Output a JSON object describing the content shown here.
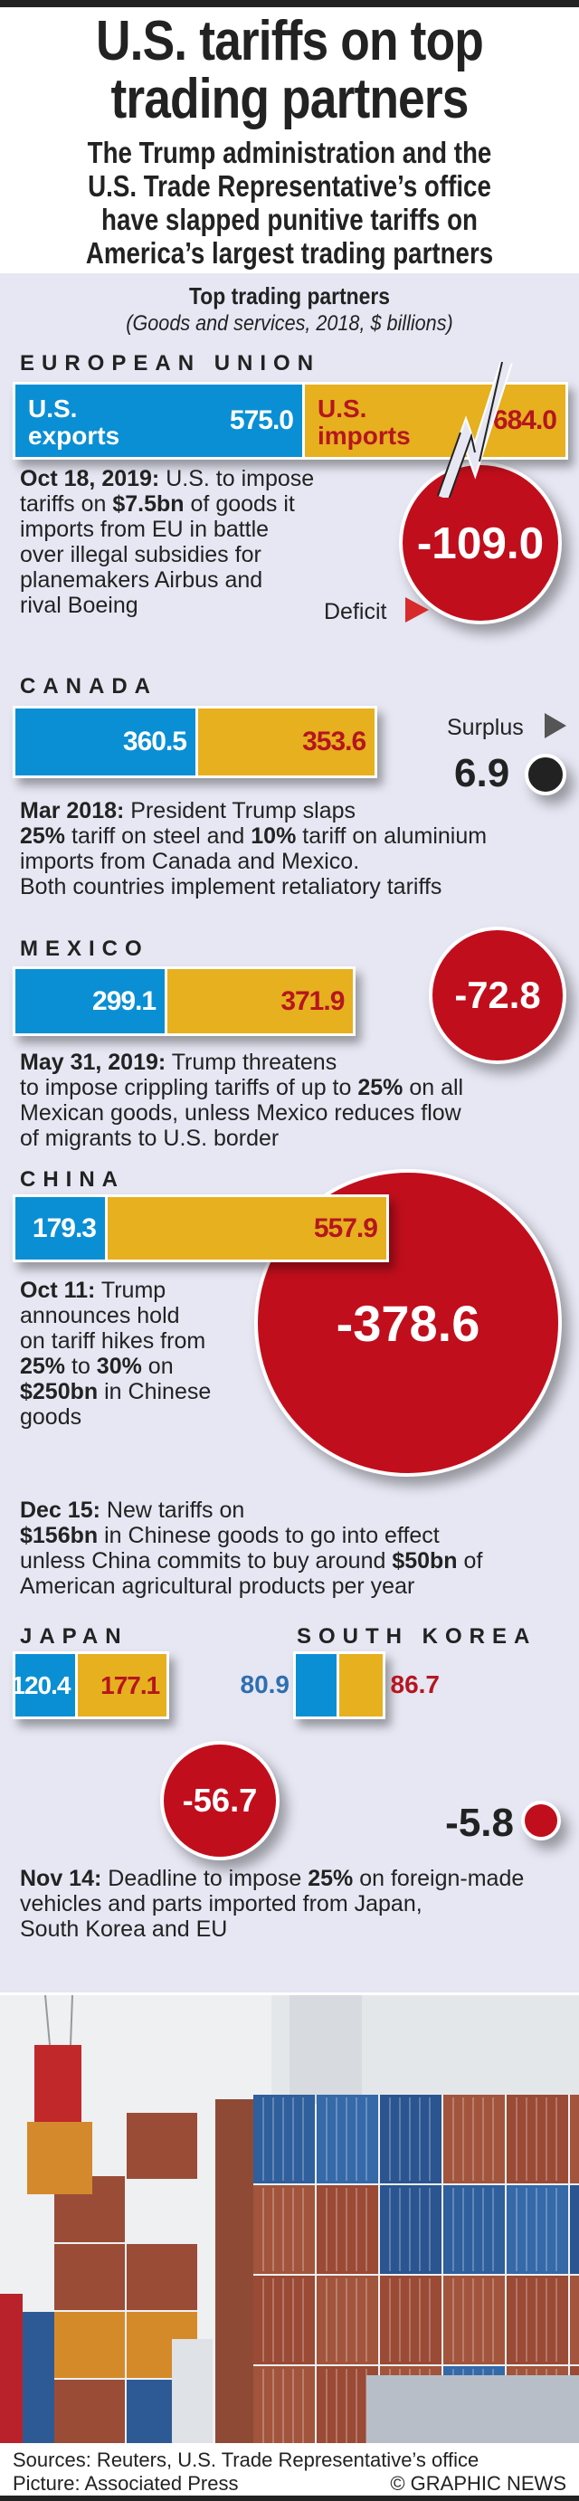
{
  "header": {
    "title_line1": "U.S. tariffs on top",
    "title_line2": "trading partners",
    "subtitle_lines": [
      "The Trump administration and the",
      "U.S. Trade Representative’s office",
      "have slapped punitive tariffs on",
      "America’s largest trading partners"
    ]
  },
  "chart_data": {
    "type": "bar",
    "title": "Top trading partners",
    "subtitle": "(Goods and services, 2018, $ billions)",
    "series_labels": {
      "exports": "U.S. exports",
      "imports": "U.S. imports"
    },
    "export_label_lines": [
      "U.S.",
      "exports"
    ],
    "import_label_lines": [
      "U.S.",
      "imports"
    ],
    "deficit_label": "Deficit",
    "surplus_label": "Surplus",
    "partners": [
      {
        "name": "EUROPEAN UNION",
        "exports": 575.0,
        "imports": 684.0,
        "balance": -109.0,
        "exports_text": "575.0",
        "imports_text": "684.0",
        "balance_text": "-109.0",
        "axis_break": true
      },
      {
        "name": "CANADA",
        "exports": 360.5,
        "imports": 353.6,
        "balance": 6.9,
        "exports_text": "360.5",
        "imports_text": "353.6",
        "balance_text": "6.9"
      },
      {
        "name": "MEXICO",
        "exports": 299.1,
        "imports": 371.9,
        "balance": -72.8,
        "exports_text": "299.1",
        "imports_text": "371.9",
        "balance_text": "-72.8"
      },
      {
        "name": "CHINA",
        "exports": 179.3,
        "imports": 557.9,
        "balance": -378.6,
        "exports_text": "179.3",
        "imports_text": "557.9",
        "balance_text": "-378.6"
      },
      {
        "name": "JAPAN",
        "exports": 120.4,
        "imports": 177.1,
        "balance": -56.7,
        "exports_text": "120.4",
        "imports_text": "177.1",
        "balance_text": "-56.7"
      },
      {
        "name": "SOUTH KOREA",
        "exports": 80.9,
        "imports": 86.7,
        "balance": -5.8,
        "exports_text": "80.9",
        "imports_text": "86.7",
        "balance_text": "-5.8"
      }
    ]
  },
  "colors": {
    "exports": "#0a8fd4",
    "imports": "#e6b01e",
    "deficit": "#c10e1c",
    "surplus": "#222222",
    "import_text": "#b5161f"
  },
  "notes": [
    {
      "id": "eu",
      "lines": [
        [
          {
            "b": true,
            "t": "Oct 18, 2019:"
          },
          {
            "t": " U.S. to impose"
          }
        ],
        [
          {
            "t": "tariffs on "
          },
          {
            "b": true,
            "t": "$7.5bn"
          },
          {
            "t": " of goods it"
          }
        ],
        [
          {
            "t": "imports from EU in battle"
          }
        ],
        [
          {
            "t": "over illegal subsidies for"
          }
        ],
        [
          {
            "t": "planemakers Airbus and"
          }
        ],
        [
          {
            "t": "rival Boeing"
          }
        ]
      ]
    },
    {
      "id": "canada",
      "lines": [
        [
          {
            "b": true,
            "t": "Mar 2018:"
          },
          {
            "t": " President Trump slaps"
          }
        ],
        [
          {
            "b": true,
            "t": "25%"
          },
          {
            "t": " tariff on steel and "
          },
          {
            "b": true,
            "t": "10%"
          },
          {
            "t": " tariff on aluminium"
          }
        ],
        [
          {
            "t": "imports from Canada and Mexico."
          }
        ],
        [
          {
            "t": "Both countries implement retaliatory tariffs"
          }
        ]
      ]
    },
    {
      "id": "mexico",
      "lines": [
        [
          {
            "b": true,
            "t": "May 31, 2019:"
          },
          {
            "t": " Trump threatens"
          }
        ],
        [
          {
            "t": "to impose crippling tariffs of up to "
          },
          {
            "b": true,
            "t": "25%"
          },
          {
            "t": " on all"
          }
        ],
        [
          {
            "t": "Mexican goods, unless Mexico reduces flow"
          }
        ],
        [
          {
            "t": "of migrants to U.S. border"
          }
        ]
      ]
    },
    {
      "id": "china1",
      "lines": [
        [
          {
            "b": true,
            "t": "Oct 11:"
          },
          {
            "t": " Trump"
          }
        ],
        [
          {
            "t": "announces hold"
          }
        ],
        [
          {
            "t": "on tariff hikes from"
          }
        ],
        [
          {
            "b": true,
            "t": "25%"
          },
          {
            "t": " to "
          },
          {
            "b": true,
            "t": "30%"
          },
          {
            "t": " on"
          }
        ],
        [
          {
            "b": true,
            "t": "$250bn"
          },
          {
            "t": " in Chinese"
          }
        ],
        [
          {
            "t": "goods"
          }
        ]
      ]
    },
    {
      "id": "china2",
      "lines": [
        [
          {
            "b": true,
            "t": "Dec 15:"
          },
          {
            "t": " New tariffs on"
          }
        ],
        [
          {
            "b": true,
            "t": "$156bn"
          },
          {
            "t": " in Chinese goods to go into effect"
          }
        ],
        [
          {
            "t": "unless China commits to buy around "
          },
          {
            "b": true,
            "t": "$50bn"
          },
          {
            "t": " of"
          }
        ],
        [
          {
            "t": "American agricultural products per year"
          }
        ]
      ]
    },
    {
      "id": "japan",
      "lines": [
        [
          {
            "b": true,
            "t": "Nov 14:"
          },
          {
            "t": " Deadline to impose "
          },
          {
            "b": true,
            "t": "25%"
          },
          {
            "t": " on foreign-made"
          }
        ],
        [
          {
            "t": "vehicles and parts imported from Japan,"
          }
        ],
        [
          {
            "t": "South Korea and EU"
          }
        ]
      ]
    }
  ],
  "footer": {
    "sources": "Sources: Reuters, U.S. Trade Representative’s office",
    "picture": "Picture: Associated Press",
    "credit": "© GRAPHIC NEWS"
  }
}
